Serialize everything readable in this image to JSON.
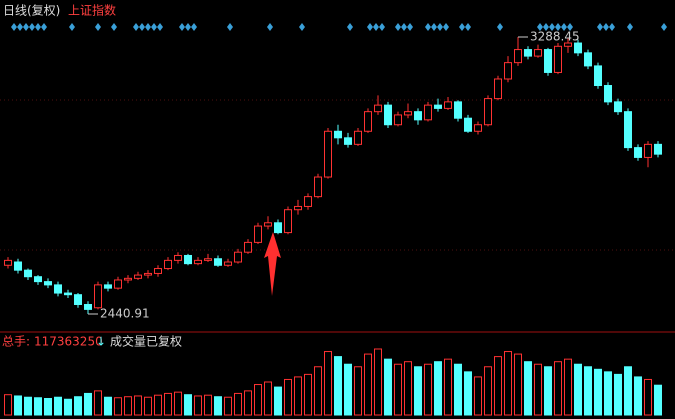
{
  "chart_data": {
    "type": "candlestick",
    "title": "日线(复权)",
    "subtitle": "上证指数",
    "open": [
      2590,
      2600,
      2575,
      2555,
      2540,
      2530,
      2505,
      2500,
      2470,
      2460,
      2530,
      2520,
      2545,
      2550,
      2560,
      2565,
      2580,
      2605,
      2620,
      2595,
      2605,
      2610,
      2590,
      2600,
      2630,
      2660,
      2710,
      2720,
      2690,
      2760,
      2770,
      2800,
      2860,
      3000,
      2980,
      2960,
      3000,
      3060,
      3080,
      3020,
      3050,
      3060,
      3035,
      3080,
      3070,
      3090,
      3040,
      3000,
      3020,
      3100,
      3160,
      3210,
      3250,
      3230,
      3250,
      3180,
      3260,
      3270,
      3240,
      3200,
      3140,
      3090,
      3060,
      2950,
      2920,
      2960
    ],
    "high": [
      2615,
      2610,
      2580,
      2560,
      2550,
      2540,
      2515,
      2505,
      2480,
      2540,
      2540,
      2555,
      2560,
      2570,
      2575,
      2590,
      2615,
      2630,
      2625,
      2615,
      2625,
      2620,
      2610,
      2640,
      2670,
      2720,
      2740,
      2730,
      2770,
      2790,
      2810,
      2870,
      3010,
      3020,
      2995,
      3010,
      3070,
      3110,
      3090,
      3060,
      3085,
      3070,
      3090,
      3100,
      3105,
      3095,
      3050,
      3030,
      3110,
      3170,
      3230,
      3288.45,
      3260,
      3265,
      3255,
      3270,
      3285,
      3280,
      3250,
      3210,
      3150,
      3100,
      3070,
      2960,
      2970,
      2970
    ],
    "low": [
      2580,
      2565,
      2545,
      2530,
      2520,
      2495,
      2490,
      2460,
      2440.91,
      2455,
      2510,
      2515,
      2535,
      2545,
      2550,
      2555,
      2575,
      2595,
      2590,
      2590,
      2600,
      2585,
      2585,
      2595,
      2625,
      2655,
      2700,
      2685,
      2685,
      2745,
      2760,
      2795,
      2855,
      2960,
      2950,
      2955,
      2995,
      3050,
      3010,
      3015,
      3040,
      3020,
      3030,
      3060,
      3065,
      3030,
      2995,
      2990,
      3015,
      3095,
      3150,
      3200,
      3220,
      3225,
      3170,
      3175,
      3240,
      3230,
      3190,
      3130,
      3080,
      3050,
      2940,
      2910,
      2890,
      2920
    ],
    "close": [
      2605,
      2575,
      2555,
      2540,
      2530,
      2505,
      2500,
      2470,
      2455,
      2530,
      2520,
      2545,
      2550,
      2560,
      2565,
      2580,
      2605,
      2620,
      2595,
      2605,
      2610,
      2590,
      2600,
      2630,
      2660,
      2710,
      2720,
      2690,
      2760,
      2770,
      2800,
      2860,
      3000,
      2980,
      2960,
      3000,
      3060,
      3080,
      3020,
      3050,
      3060,
      3035,
      3080,
      3070,
      3090,
      3040,
      3000,
      3020,
      3100,
      3160,
      3210,
      3250,
      3230,
      3250,
      3180,
      3260,
      3270,
      3240,
      3200,
      3140,
      3090,
      3060,
      2950,
      2920,
      2960,
      2930
    ],
    "volume": [
      80000000,
      75000000,
      70000000,
      68000000,
      65000000,
      70000000,
      62000000,
      72000000,
      85000000,
      95000000,
      70000000,
      68000000,
      72000000,
      75000000,
      70000000,
      78000000,
      85000000,
      90000000,
      80000000,
      75000000,
      78000000,
      72000000,
      70000000,
      85000000,
      95000000,
      120000000,
      130000000,
      110000000,
      140000000,
      150000000,
      160000000,
      190000000,
      250000000,
      230000000,
      200000000,
      190000000,
      240000000,
      260000000,
      220000000,
      200000000,
      210000000,
      190000000,
      200000000,
      210000000,
      220000000,
      200000000,
      170000000,
      150000000,
      190000000,
      230000000,
      250000000,
      240000000,
      210000000,
      200000000,
      190000000,
      210000000,
      220000000,
      200000000,
      190000000,
      180000000,
      170000000,
      160000000,
      190000000,
      150000000,
      140000000,
      117363250
    ],
    "high_label": "3288.45",
    "low_label": "2440.91",
    "volume_prefix": "总手:",
    "volume_arrow": "↓",
    "volume_note": "成交量已复权",
    "up_color": "#ff3232",
    "down_color": "#54ffff"
  }
}
